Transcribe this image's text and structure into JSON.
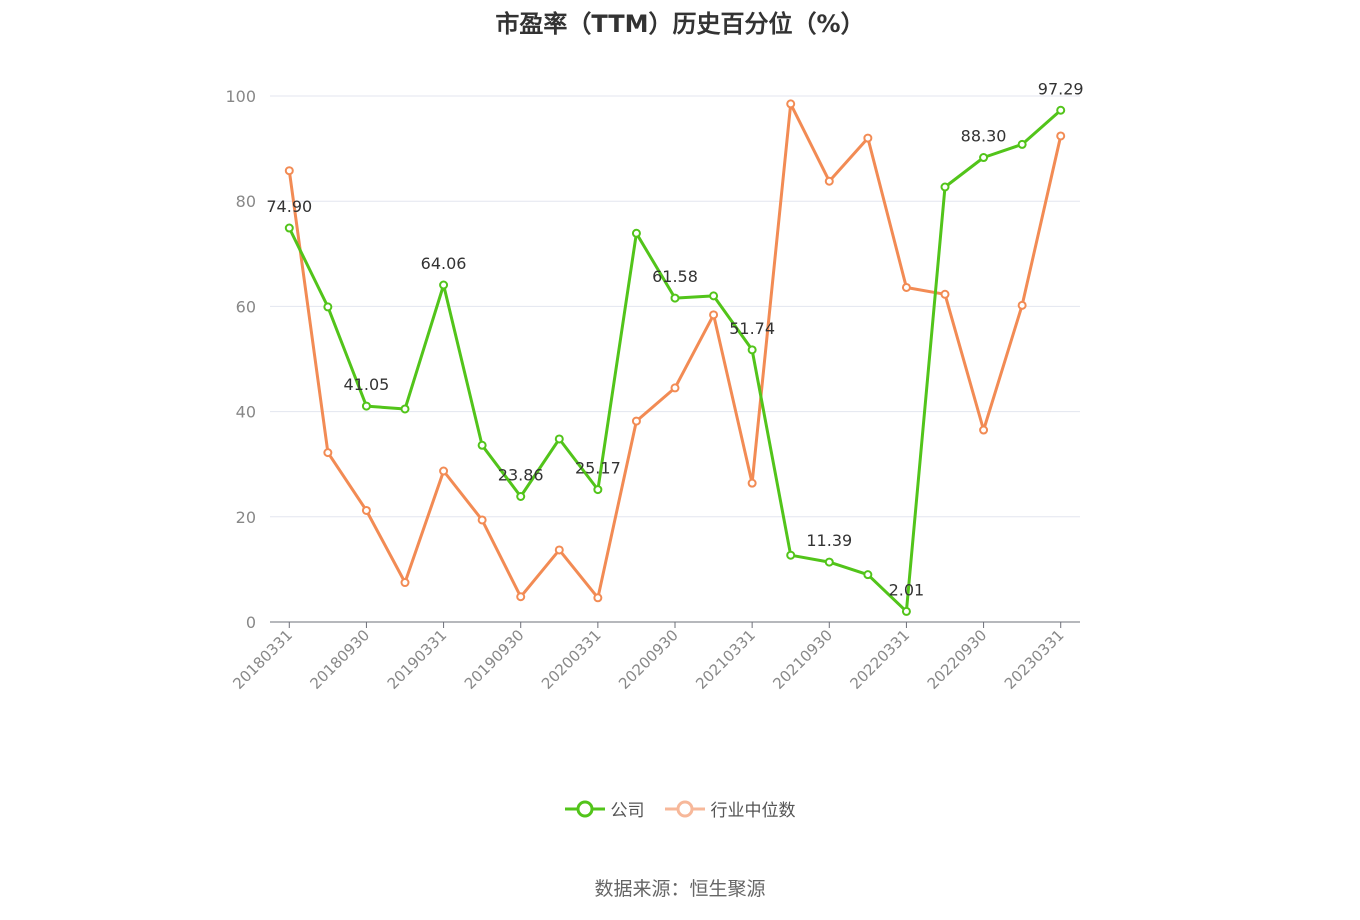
{
  "chart_data": {
    "type": "line",
    "title": "市盈率（TTM）历史百分位（%）",
    "xlabel": "",
    "ylabel": "",
    "ylim": [
      0,
      100
    ],
    "yticks": [
      0,
      20,
      40,
      60,
      80,
      100
    ],
    "grid": true,
    "legend_position": "bottom",
    "x": [
      "20180331",
      "20180630",
      "20180930",
      "20181231",
      "20190331",
      "20190630",
      "20190930",
      "20191231",
      "20200331",
      "20200630",
      "20200930",
      "20201231",
      "20210331",
      "20210630",
      "20210930",
      "20211231",
      "20220331",
      "20220630",
      "20220930",
      "20221231",
      "20230331"
    ],
    "xtick_labels": [
      "20180331",
      "20180930",
      "20190331",
      "20190930",
      "20200331",
      "20200930",
      "20210331",
      "20210930",
      "20220331",
      "20220930",
      "20230331"
    ],
    "series": [
      {
        "name": "公司",
        "color": "#52c41a",
        "values": [
          74.9,
          59.9,
          41.05,
          40.5,
          64.06,
          33.6,
          23.86,
          34.8,
          25.17,
          73.9,
          61.58,
          62.0,
          51.74,
          12.7,
          11.39,
          9.0,
          2.01,
          82.7,
          88.3,
          90.8,
          97.29
        ],
        "data_labels": [
          "74.90",
          "",
          "41.05",
          "",
          "64.06",
          "",
          "23.86",
          "",
          "25.17",
          "",
          "61.58",
          "",
          "51.74",
          "",
          "11.39",
          "",
          "2.01",
          "",
          "88.30",
          "",
          "97.29"
        ]
      },
      {
        "name": "行业中位数",
        "color": "#f28b54",
        "values": [
          85.8,
          32.2,
          21.2,
          7.5,
          28.7,
          19.4,
          4.8,
          13.7,
          4.6,
          38.2,
          44.5,
          58.4,
          26.4,
          98.5,
          83.8,
          92.0,
          63.6,
          62.3,
          36.5,
          60.2,
          92.4
        ]
      }
    ]
  },
  "legend": {
    "company_label": "公司",
    "industry_label": "行业中位数"
  },
  "footer": {
    "source_text": "数据来源：恒生聚源"
  }
}
